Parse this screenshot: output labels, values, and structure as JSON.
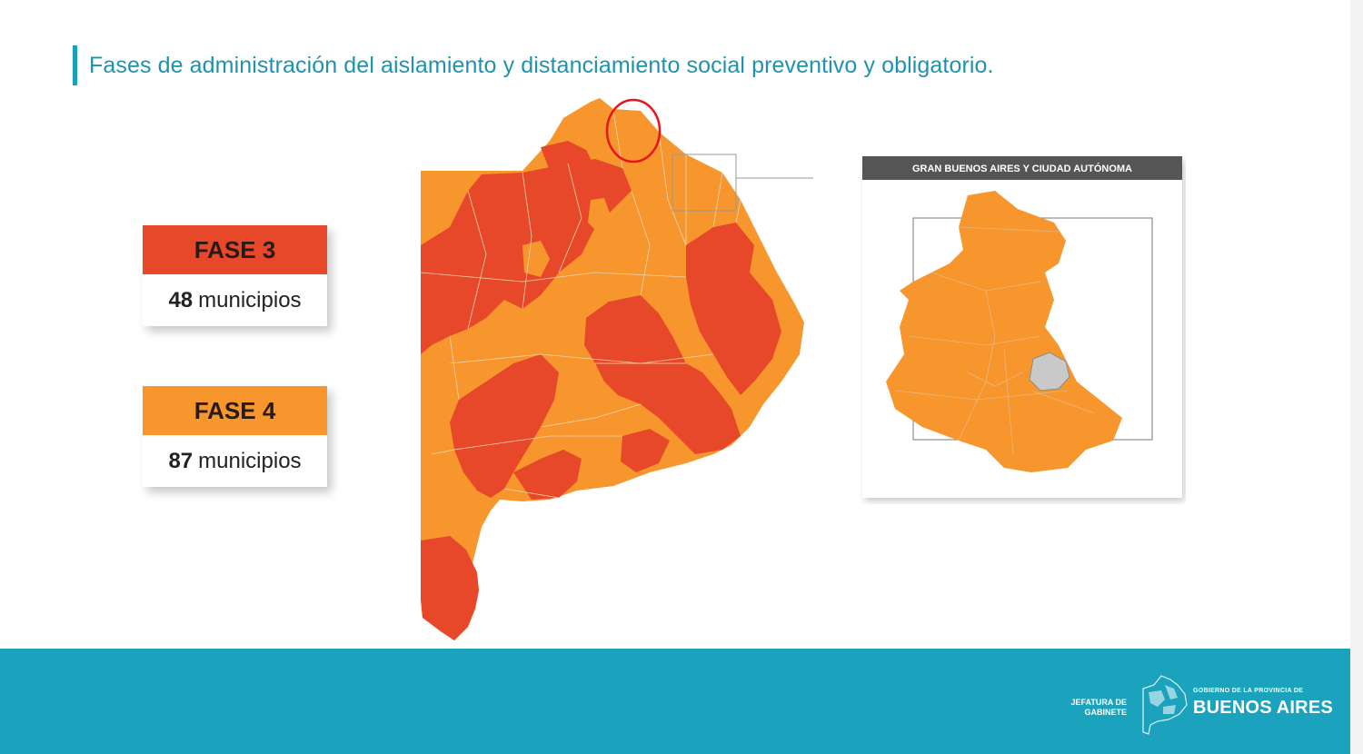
{
  "title": "Fases de administración del aislamiento y distanciamiento social preventivo y obligatorio.",
  "legend": [
    {
      "phase": "FASE 3",
      "count": "48",
      "unit": "municipios",
      "color": "#e7482a"
    },
    {
      "phase": "FASE 4",
      "count": "87",
      "unit": "municipios",
      "color": "#f7962d"
    }
  ],
  "inset": {
    "title": "GRAN BUENOS AIRES Y CIUDAD AUTÓNOMA"
  },
  "colors": {
    "fase3": "#e7482a",
    "fase4": "#f7962d",
    "caba": "#c9c9c9",
    "accent": "#1ba2bd",
    "highlight_circle": "#e8141c"
  },
  "footer": {
    "jefatura": "JEFATURA DE GABINETE",
    "gobierno": "GOBIERNO DE LA PROVINCIA DE",
    "buenos_aires": "BUENOS AIRES"
  }
}
